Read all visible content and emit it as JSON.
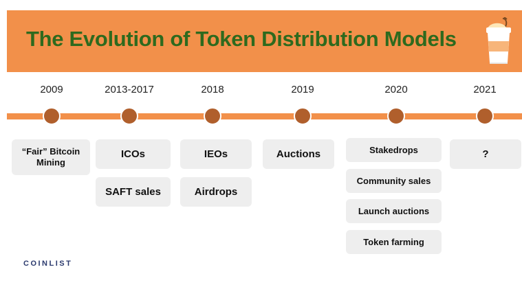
{
  "title": "The Evolution of Token Distribution Models",
  "brand": "COINLIST",
  "colors": {
    "accent": "#f2904a",
    "title": "#2e6a1e",
    "node": "#b05f2c",
    "card": "#eeeeee"
  },
  "icons": {
    "header": "coffee-cup-icon"
  },
  "timeline": [
    {
      "year": "2009",
      "items": [
        "“Fair” Bitcoin Mining"
      ]
    },
    {
      "year": "2013-2017",
      "items": [
        "ICOs",
        "SAFT sales"
      ]
    },
    {
      "year": "2018",
      "items": [
        "IEOs",
        "Airdrops"
      ]
    },
    {
      "year": "2019",
      "items": [
        "Auctions"
      ]
    },
    {
      "year": "2020",
      "items": [
        "Stakedrops",
        "Community sales",
        "Launch auctions",
        "Token farming"
      ]
    },
    {
      "year": "2021",
      "items": [
        "?"
      ]
    }
  ]
}
